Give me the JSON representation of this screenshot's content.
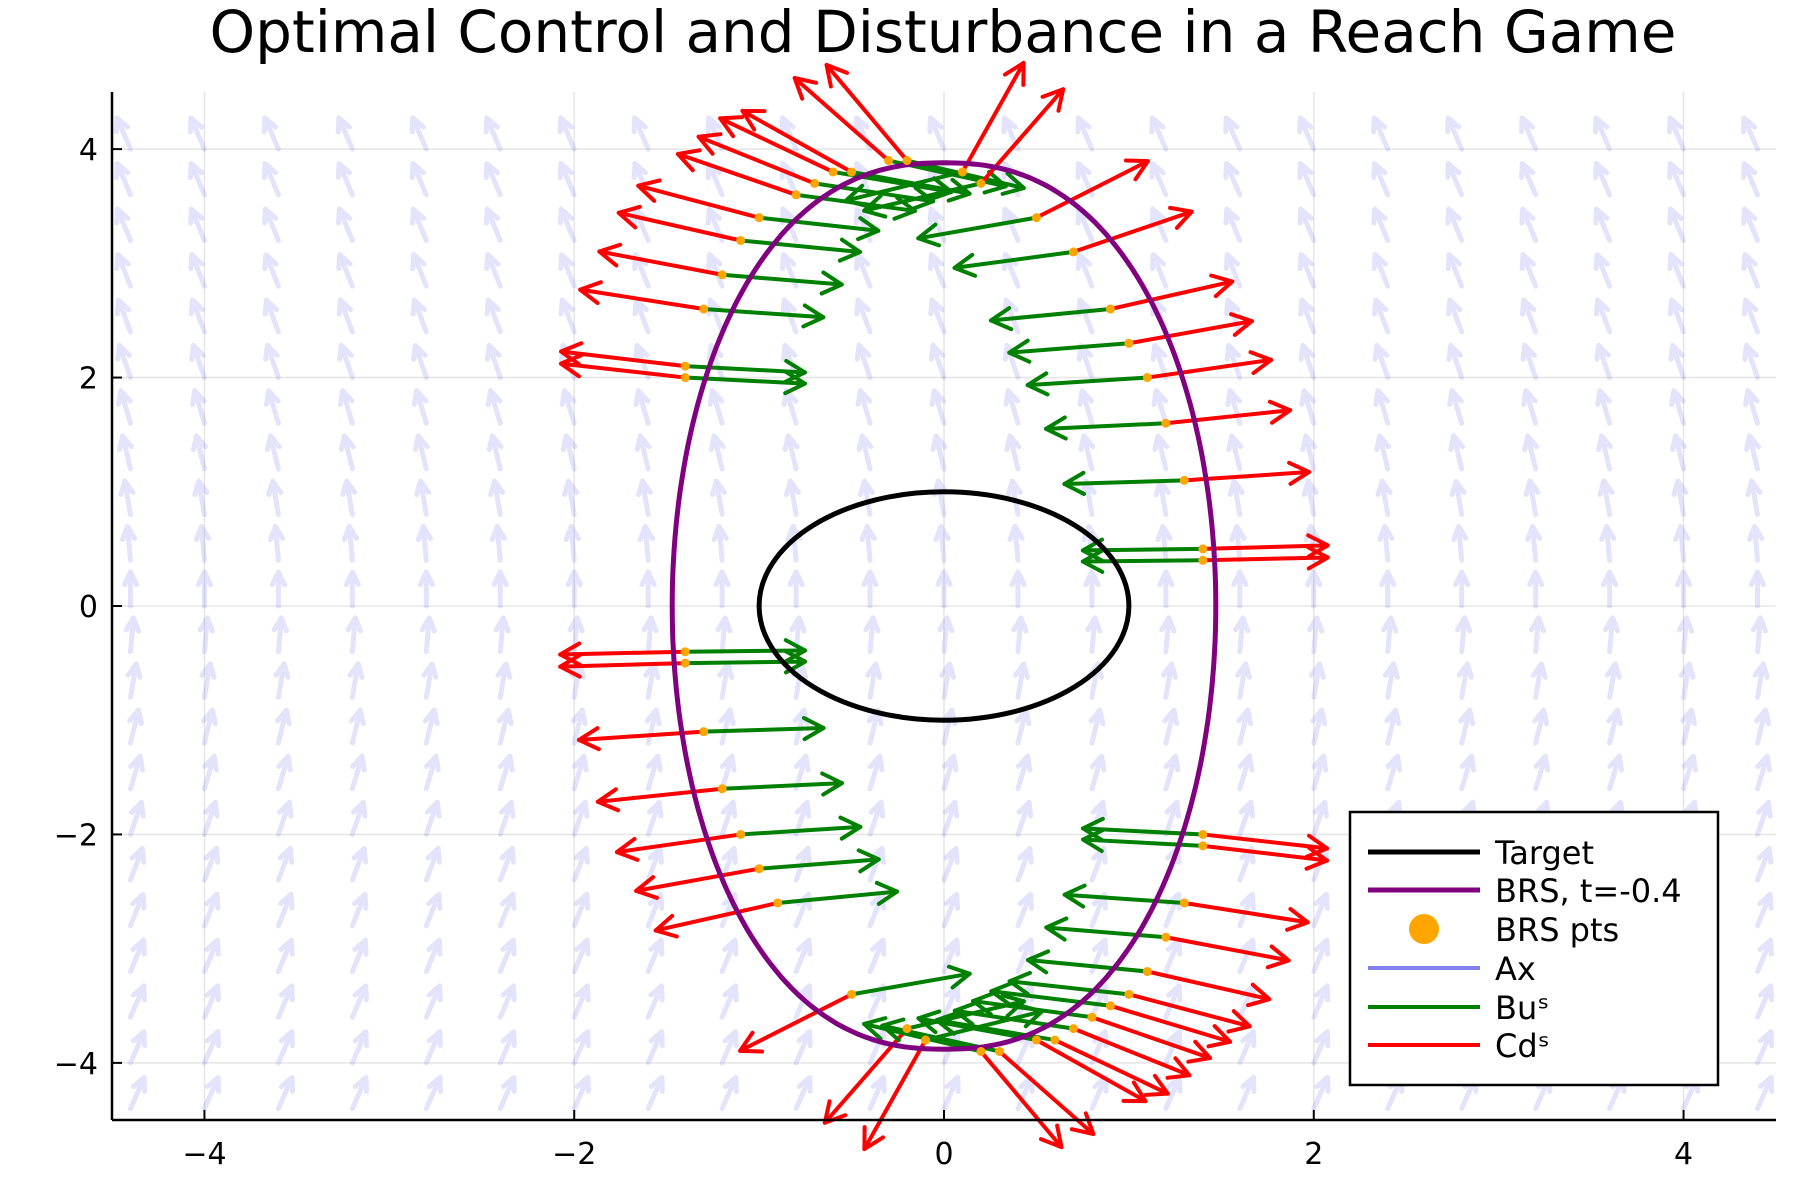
{
  "chart_data": {
    "type": "line",
    "title": "Optimal Control and Disturbance in a Reach Game",
    "xlabel": "",
    "ylabel": "",
    "xlim": [
      -4.5,
      4.5
    ],
    "ylim": [
      -4.5,
      4.5
    ],
    "xticks": [
      {
        "value": -4,
        "label": "−4"
      },
      {
        "value": -2,
        "label": "−2"
      },
      {
        "value": 0,
        "label": "0"
      },
      {
        "value": 2,
        "label": "2"
      },
      {
        "value": 4,
        "label": "4"
      }
    ],
    "yticks": [
      {
        "value": -4,
        "label": "−4"
      },
      {
        "value": -2,
        "label": "−2"
      },
      {
        "value": 0,
        "label": "0"
      },
      {
        "value": 2,
        "label": "2"
      },
      {
        "value": 4,
        "label": "4"
      }
    ],
    "grid": true,
    "legend_position": "bottom-right",
    "legend": [
      {
        "label": "Target",
        "kind": "line",
        "color": "#000000"
      },
      {
        "label": "BRS, t=-0.4",
        "kind": "line",
        "color": "#800080"
      },
      {
        "label": "BRS pts",
        "kind": "marker",
        "color": "#FFA500"
      },
      {
        "label": "Ax",
        "kind": "line",
        "color": "#8080F0"
      },
      {
        "label": "Buˢ",
        "kind": "line",
        "color": "#008000"
      },
      {
        "label": "Cdˢ",
        "kind": "line",
        "color": "#FF0000"
      }
    ],
    "target": {
      "type": "ellipse",
      "center": [
        0,
        0
      ],
      "rx": 1.0,
      "ry": 1.0,
      "color": "#000000"
    },
    "brs": {
      "type": "ellipse",
      "center": [
        0,
        0
      ],
      "rx": 1.47,
      "ry": 3.88,
      "y_shift_top": 0.0,
      "color": "#800080"
    },
    "brs_points": [
      [
        -0.3,
        3.9
      ],
      [
        -0.2,
        3.9
      ],
      [
        -0.5,
        3.8
      ],
      [
        -0.6,
        3.8
      ],
      [
        -0.7,
        3.7
      ],
      [
        -0.8,
        3.6
      ],
      [
        -1.0,
        3.4
      ],
      [
        -1.1,
        3.2
      ],
      [
        -1.2,
        2.9
      ],
      [
        -1.3,
        2.6
      ],
      [
        -1.4,
        2.1
      ],
      [
        -1.4,
        2.0
      ],
      [
        0.1,
        3.8
      ],
      [
        0.2,
        3.7
      ],
      [
        0.5,
        3.4
      ],
      [
        0.7,
        3.1
      ],
      [
        0.9,
        2.6
      ],
      [
        1.0,
        2.3
      ],
      [
        1.1,
        2.0
      ],
      [
        1.2,
        1.6
      ],
      [
        1.3,
        1.1
      ],
      [
        1.4,
        0.5
      ],
      [
        1.4,
        0.4
      ],
      [
        -1.4,
        -0.4
      ],
      [
        -1.4,
        -0.5
      ],
      [
        -1.3,
        -1.1
      ],
      [
        -1.2,
        -1.6
      ],
      [
        -1.1,
        -2.0
      ],
      [
        -1.0,
        -2.3
      ],
      [
        -0.9,
        -2.6
      ],
      [
        -0.5,
        -3.4
      ],
      [
        -0.2,
        -3.7
      ],
      [
        -0.1,
        -3.8
      ],
      [
        0.2,
        -3.9
      ],
      [
        0.3,
        -3.9
      ],
      [
        0.5,
        -3.8
      ],
      [
        0.6,
        -3.8
      ],
      [
        0.7,
        -3.7
      ],
      [
        0.8,
        -3.6
      ],
      [
        0.9,
        -3.5
      ],
      [
        1.0,
        -3.4
      ],
      [
        1.1,
        -3.2
      ],
      [
        1.2,
        -2.9
      ],
      [
        1.3,
        -2.6
      ],
      [
        1.4,
        -2.1
      ],
      [
        1.4,
        -2.0
      ]
    ],
    "vector_field": {
      "label": "Ax",
      "color": "#8080F0",
      "x_range": [
        -4.4,
        4.4
      ],
      "y_range": [
        -4.4,
        4.2
      ],
      "step": 0.4
    }
  }
}
